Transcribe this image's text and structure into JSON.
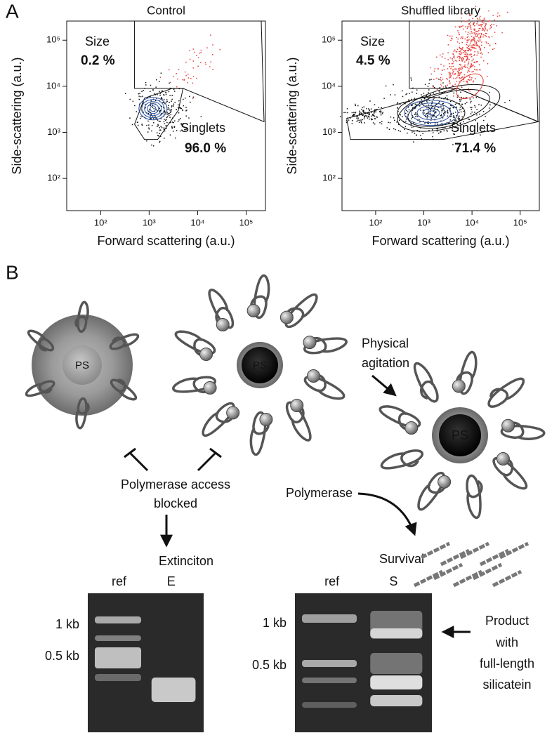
{
  "panel_a": {
    "label": "A",
    "plots": [
      {
        "title": "Control",
        "x_label": "Forward scattering (a.u.)",
        "y_label": "Side-scattering (a.u.)",
        "log_scale": true,
        "xlim": [
          20,
          250000
        ],
        "ylim": [
          20,
          260000
        ],
        "xticks": [
          {
            "value": 100,
            "label": "10²"
          },
          {
            "value": 1000,
            "label": "10³"
          },
          {
            "value": 10000,
            "label": "10⁴"
          },
          {
            "value": 100000,
            "label": "10⁵"
          }
        ],
        "yticks": [
          {
            "value": 100,
            "label": "10²"
          },
          {
            "value": 1000,
            "label": "10³"
          },
          {
            "value": 10000,
            "label": "10⁴"
          },
          {
            "value": 100000,
            "label": "10⁵"
          }
        ],
        "gates": [
          {
            "name": "Size",
            "percent": "0.2 %",
            "color": "#e8403a"
          },
          {
            "name": "Singlets",
            "percent": "96.0 %",
            "color": "#2a52a0"
          }
        ]
      },
      {
        "title": "Shuffled library",
        "x_label": "Forward scattering (a.u.)",
        "y_label": "Side-scattering (a.u.)",
        "log_scale": true,
        "xlim": [
          20,
          250000
        ],
        "ylim": [
          20,
          260000
        ],
        "xticks": [
          {
            "value": 100,
            "label": "10²"
          },
          {
            "value": 1000,
            "label": "10³"
          },
          {
            "value": 10000,
            "label": "10⁴"
          },
          {
            "value": 100000,
            "label": "10⁵"
          }
        ],
        "yticks": [
          {
            "value": 100,
            "label": "10²"
          },
          {
            "value": 1000,
            "label": "10³"
          },
          {
            "value": 10000,
            "label": "10⁴"
          },
          {
            "value": 100000,
            "label": "10⁵"
          }
        ],
        "gates": [
          {
            "name": "Size",
            "percent": "4.5 %",
            "color": "#e8403a"
          },
          {
            "name": "Singlets",
            "percent": "71.4 %",
            "color": "#2a52a0"
          }
        ]
      }
    ]
  },
  "panel_b": {
    "label": "B",
    "core_label": "PS",
    "agitation": [
      "Physical",
      "agitation"
    ],
    "blocked": [
      "Polymerase access",
      "blocked"
    ],
    "extinction": "Extinciton",
    "polymerase": "Polymerase",
    "survival": "Survival",
    "gel_left": {
      "lanes": [
        "ref",
        "E"
      ],
      "markers": [
        "1 kb",
        "0.5 kb"
      ]
    },
    "gel_right": {
      "lanes": [
        "ref",
        "S"
      ],
      "markers": [
        "1 kb",
        "0.5 kb"
      ]
    },
    "product": [
      "Product",
      "with",
      "full-length",
      "silicatein"
    ]
  }
}
